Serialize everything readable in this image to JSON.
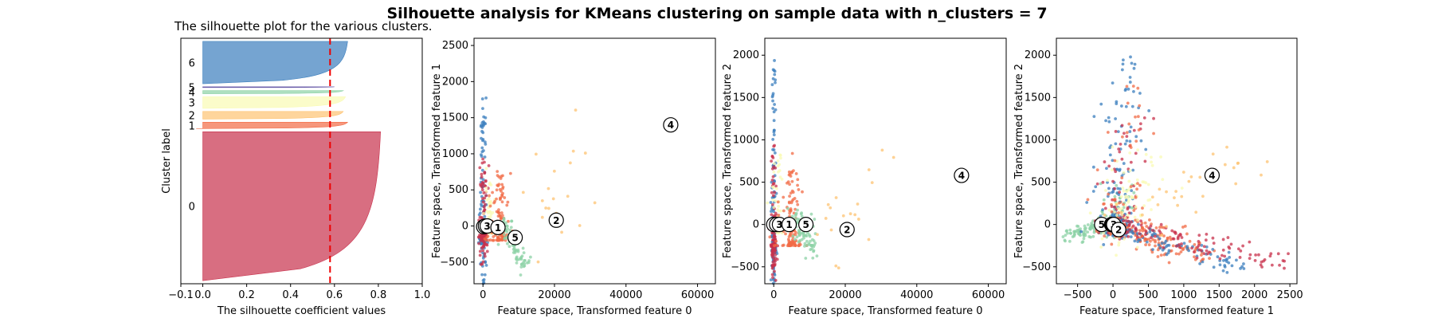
{
  "suptitle": "Silhouette analysis for KMeans clustering on sample data with n_clusters = 7",
  "cluster_colors": [
    "#c8304b",
    "#f26b45",
    "#fdc372",
    "#fafbb4",
    "#8cd2a5",
    "#3a7ebd",
    "#5e4fa2"
  ],
  "chart_data": [
    {
      "type": "area",
      "title": "The silhouette plot for the various clusters.",
      "xlabel": "The silhouette coefficient values",
      "ylabel": "Cluster label",
      "xlim": [
        -0.1,
        1.0
      ],
      "xticks": [
        "−0.1",
        "0.0",
        "0.2",
        "0.4",
        "0.6",
        "0.8",
        "1.0"
      ],
      "xtick_values": [
        -0.1,
        0.0,
        0.2,
        0.4,
        0.6,
        0.8,
        1.0
      ],
      "average_silhouette": 0.58,
      "clusters": [
        {
          "label": "0",
          "size_fraction": 0.58,
          "max": 0.81,
          "min": 0.0,
          "color": "#c8304b"
        },
        {
          "label": "1",
          "size_fraction": 0.025,
          "max": 0.66,
          "min": -0.03,
          "color": "#f26b45"
        },
        {
          "label": "2",
          "size_fraction": 0.03,
          "max": 0.64,
          "min": 0.0,
          "color": "#fdc372"
        },
        {
          "label": "3",
          "size_fraction": 0.045,
          "max": 0.65,
          "min": 0.0,
          "color": "#fafbb4"
        },
        {
          "label": "4",
          "size_fraction": 0.012,
          "max": 0.64,
          "min": 0.0,
          "color": "#8cd2a5"
        },
        {
          "label": "5",
          "size_fraction": 0.003,
          "max": 0.6,
          "min": 0.0,
          "color": "#5e4fa2"
        },
        {
          "label": "6",
          "size_fraction": 0.165,
          "max": 0.66,
          "min": 0.0,
          "color": "#3a7ebd"
        }
      ]
    },
    {
      "type": "scatter",
      "xlabel": "Feature space, Transformed feature 0",
      "ylabel": "Feature space, Transformed feature 1",
      "xlim": [
        -2500,
        65000
      ],
      "ylim": [
        -800,
        2600
      ],
      "xticks": [
        "0",
        "20000",
        "40000",
        "60000"
      ],
      "xtick_values": [
        0,
        20000,
        40000,
        60000
      ],
      "yticks": [
        "−500",
        "0",
        "500",
        "1000",
        "1500",
        "2000",
        "2500"
      ],
      "ytick_values": [
        -500,
        0,
        500,
        1000,
        1500,
        2000,
        2500
      ],
      "centers": [
        {
          "label": "0",
          "x": 200,
          "y": -10
        },
        {
          "label": "6",
          "x": 700,
          "y": 0
        },
        {
          "label": "3",
          "x": 1200,
          "y": 0
        },
        {
          "label": "1",
          "x": 4200,
          "y": -20
        },
        {
          "label": "5",
          "x": 9000,
          "y": -160
        },
        {
          "label": "2",
          "x": 20500,
          "y": 80
        },
        {
          "label": "4",
          "x": 52500,
          "y": 1400
        }
      ]
    },
    {
      "type": "scatter",
      "xlabel": "Feature space, Transformed feature 0",
      "ylabel": "Feature space, Transformed feature 2",
      "xlim": [
        -2500,
        65000
      ],
      "ylim": [
        -700,
        2200
      ],
      "xticks": [
        "0",
        "20000",
        "40000",
        "60000"
      ],
      "xtick_values": [
        0,
        20000,
        40000,
        60000
      ],
      "yticks": [
        "−500",
        "0",
        "500",
        "1000",
        "1500",
        "2000"
      ],
      "ytick_values": [
        -500,
        0,
        500,
        1000,
        1500,
        2000
      ],
      "centers": [
        {
          "label": "0",
          "x": 0,
          "y": 0
        },
        {
          "label": "6",
          "x": 800,
          "y": 0
        },
        {
          "label": "3",
          "x": 1600,
          "y": 0
        },
        {
          "label": "1",
          "x": 4300,
          "y": 0
        },
        {
          "label": "5",
          "x": 9000,
          "y": 0
        },
        {
          "label": "2",
          "x": 20500,
          "y": -60
        },
        {
          "label": "4",
          "x": 52500,
          "y": 580
        }
      ]
    },
    {
      "type": "scatter",
      "xlabel": "Feature space, Transformed feature 1",
      "ylabel": "Feature space, Transformed feature 2",
      "xlim": [
        -800,
        2600
      ],
      "ylim": [
        -700,
        2200
      ],
      "xticks": [
        "−500",
        "0",
        "500",
        "1000",
        "1500",
        "2000",
        "2500"
      ],
      "xtick_values": [
        -500,
        0,
        500,
        1000,
        1500,
        2000,
        2500
      ],
      "yticks": [
        "−500",
        "0",
        "500",
        "1000",
        "1500",
        "2000"
      ],
      "ytick_values": [
        -500,
        0,
        500,
        1000,
        1500,
        2000
      ],
      "centers": [
        {
          "label": "5",
          "x": -160,
          "y": 0
        },
        {
          "label": "1",
          "x": -20,
          "y": 0
        },
        {
          "label": "0",
          "x": -10,
          "y": 0
        },
        {
          "label": "6",
          "x": 0,
          "y": 0
        },
        {
          "label": "3",
          "x": 10,
          "y": 0
        },
        {
          "label": "2",
          "x": 80,
          "y": -60
        },
        {
          "label": "4",
          "x": 1400,
          "y": 580
        }
      ]
    }
  ]
}
